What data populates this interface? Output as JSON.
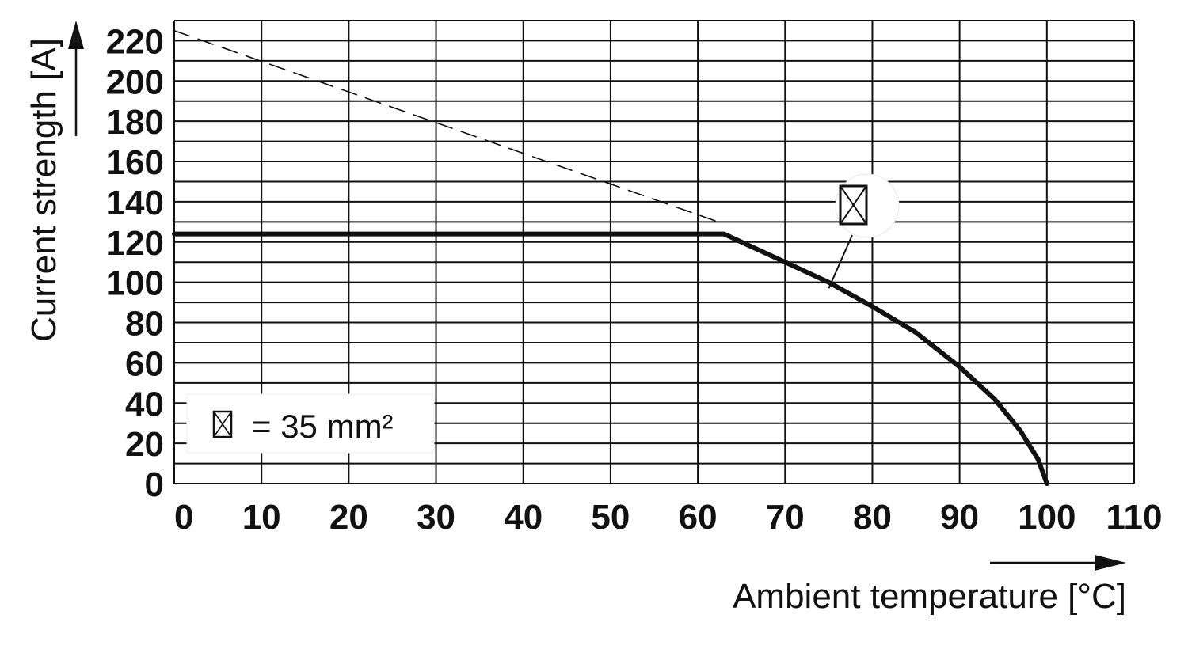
{
  "chart_data": {
    "type": "line",
    "xlabel": "Ambient temperature [°C]",
    "ylabel": "Current strength [A]",
    "xlim": [
      0,
      110
    ],
    "ylim": [
      0,
      230
    ],
    "x_ticks": [
      0,
      10,
      20,
      30,
      40,
      50,
      60,
      70,
      80,
      90,
      100,
      110
    ],
    "y_ticks": [
      0,
      20,
      40,
      60,
      80,
      100,
      120,
      140,
      160,
      180,
      200,
      220
    ],
    "x_tick_labels": [
      "0",
      "10",
      "20",
      "30",
      "40",
      "50",
      "60",
      "70",
      "80",
      "90",
      "100",
      "110"
    ],
    "y_tick_labels": [
      "0",
      "20",
      "40",
      "60",
      "80",
      "100",
      "120",
      "140",
      "160",
      "180",
      "200",
      "220"
    ],
    "y_gridlines": [
      0,
      10,
      20,
      30,
      40,
      50,
      60,
      70,
      80,
      90,
      100,
      110,
      120,
      130,
      140,
      150,
      160,
      170,
      180,
      190,
      200,
      210,
      220,
      230
    ],
    "grid": true,
    "series": [
      {
        "style": "solid-thick",
        "color": "#111111",
        "points": [
          [
            0,
            124
          ],
          [
            63,
            124
          ],
          [
            66,
            118
          ],
          [
            70,
            110
          ],
          [
            75,
            100
          ],
          [
            80,
            88
          ],
          [
            85,
            75
          ],
          [
            90,
            58
          ],
          [
            94,
            42
          ],
          [
            97,
            26
          ],
          [
            99,
            12
          ],
          [
            100,
            0
          ]
        ]
      },
      {
        "style": "dashed-thin",
        "color": "#111111",
        "points": [
          [
            0,
            225
          ],
          [
            63,
            129
          ]
        ]
      }
    ],
    "annotation": {
      "symbol": "cross-section-icon",
      "points_to": [
        75,
        97
      ]
    },
    "legend": {
      "position": "bottom-left",
      "text": "= 35 mm²"
    }
  }
}
